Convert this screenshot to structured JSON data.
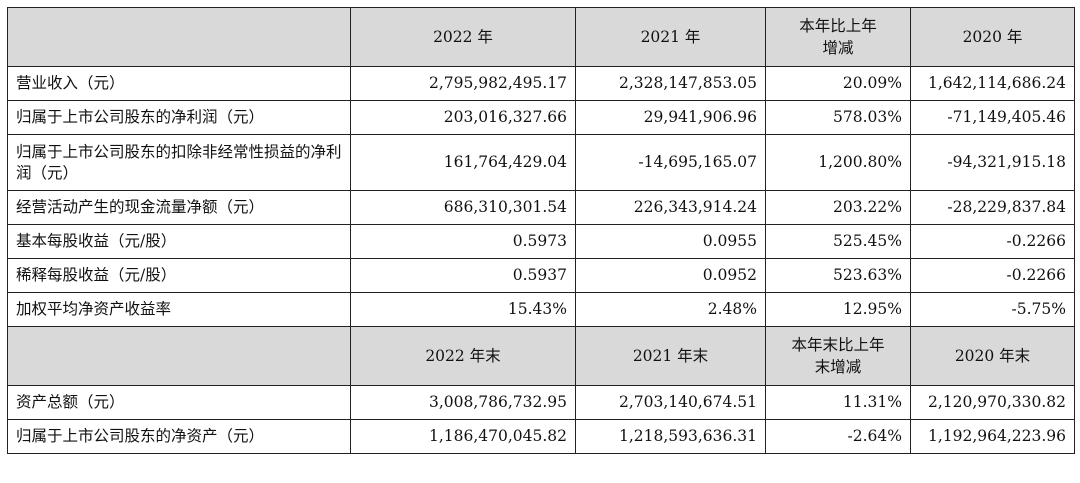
{
  "table": {
    "header1": [
      "",
      "2022 年",
      "2021 年",
      "本年比上年增减",
      "2020 年"
    ],
    "rows1": [
      {
        "label": "营业收入（元）",
        "values": [
          "2,795,982,495.17",
          "2,328,147,853.05",
          "20.09%",
          "1,642,114,686.24"
        ]
      },
      {
        "label": "归属于上市公司股东的净利润（元）",
        "values": [
          "203,016,327.66",
          "29,941,906.96",
          "578.03%",
          "-71,149,405.46"
        ]
      },
      {
        "label": "归属于上市公司股东的扣除非经常性损益的净利润（元）",
        "values": [
          "161,764,429.04",
          "-14,695,165.07",
          "1,200.80%",
          "-94,321,915.18"
        ]
      },
      {
        "label": "经营活动产生的现金流量净额（元）",
        "values": [
          "686,310,301.54",
          "226,343,914.24",
          "203.22%",
          "-28,229,837.84"
        ]
      },
      {
        "label": "基本每股收益（元/股）",
        "values": [
          "0.5973",
          "0.0955",
          "525.45%",
          "-0.2266"
        ]
      },
      {
        "label": "稀释每股收益（元/股）",
        "values": [
          "0.5937",
          "0.0952",
          "523.63%",
          "-0.2266"
        ]
      },
      {
        "label": "加权平均净资产收益率",
        "values": [
          "15.43%",
          "2.48%",
          "12.95%",
          "-5.75%"
        ]
      }
    ],
    "header2": [
      "",
      "2022 年末",
      "2021 年末",
      "本年末比上年末增减",
      "2020 年末"
    ],
    "rows2": [
      {
        "label": "资产总额（元）",
        "values": [
          "3,008,786,732.95",
          "2,703,140,674.51",
          "11.31%",
          "2,120,970,330.82"
        ]
      },
      {
        "label": "归属于上市公司股东的净资产（元）",
        "values": [
          "1,186,470,045.82",
          "1,218,593,636.31",
          "-2.64%",
          "1,192,964,223.96"
        ]
      }
    ]
  }
}
